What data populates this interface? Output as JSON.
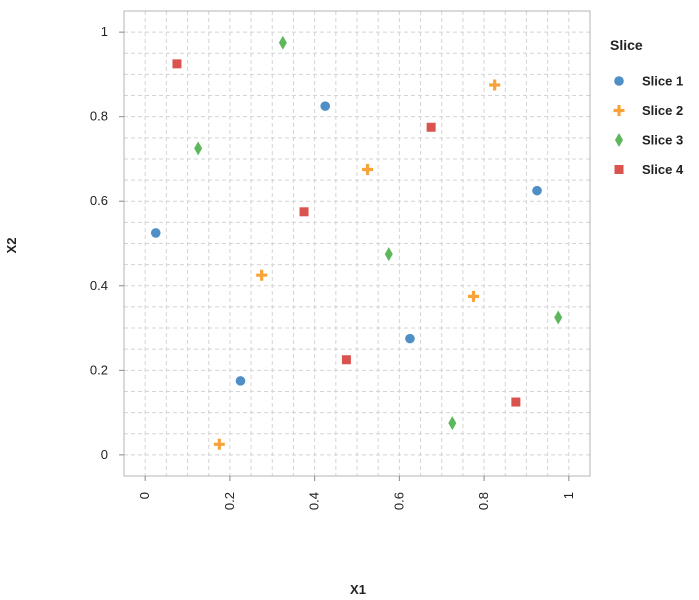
{
  "chart_data": {
    "type": "scatter",
    "xlabel": "X1",
    "ylabel": "X2",
    "xlim": [
      -0.05,
      1.05
    ],
    "ylim": [
      -0.05,
      1.05
    ],
    "x_ticks": [
      "0",
      "0.2",
      "0.4",
      "0.6",
      "0.8",
      "1"
    ],
    "y_ticks": [
      "0",
      "0.2",
      "0.4",
      "0.6",
      "0.8",
      "1"
    ],
    "grid": true,
    "legend": {
      "title": "Slice",
      "position": "right"
    },
    "series": [
      {
        "name": "Slice 1",
        "color": "#4e8fc5",
        "marker": "circle",
        "x": [
          0.025,
          0.225,
          0.425,
          0.625,
          0.925
        ],
        "y": [
          0.525,
          0.175,
          0.825,
          0.275,
          0.625
        ]
      },
      {
        "name": "Slice 2",
        "color": "#f8a33a",
        "marker": "cross",
        "x": [
          0.175,
          0.275,
          0.525,
          0.775,
          0.825
        ],
        "y": [
          0.025,
          0.425,
          0.675,
          0.375,
          0.875
        ]
      },
      {
        "name": "Slice 3",
        "color": "#5db85b",
        "marker": "diamond",
        "x": [
          0.125,
          0.325,
          0.575,
          0.725,
          0.975
        ],
        "y": [
          0.725,
          0.975,
          0.475,
          0.075,
          0.325
        ]
      },
      {
        "name": "Slice 4",
        "color": "#d9534f",
        "marker": "square",
        "x": [
          0.075,
          0.375,
          0.475,
          0.675,
          0.875
        ],
        "y": [
          0.925,
          0.575,
          0.225,
          0.775,
          0.125
        ]
      }
    ]
  }
}
